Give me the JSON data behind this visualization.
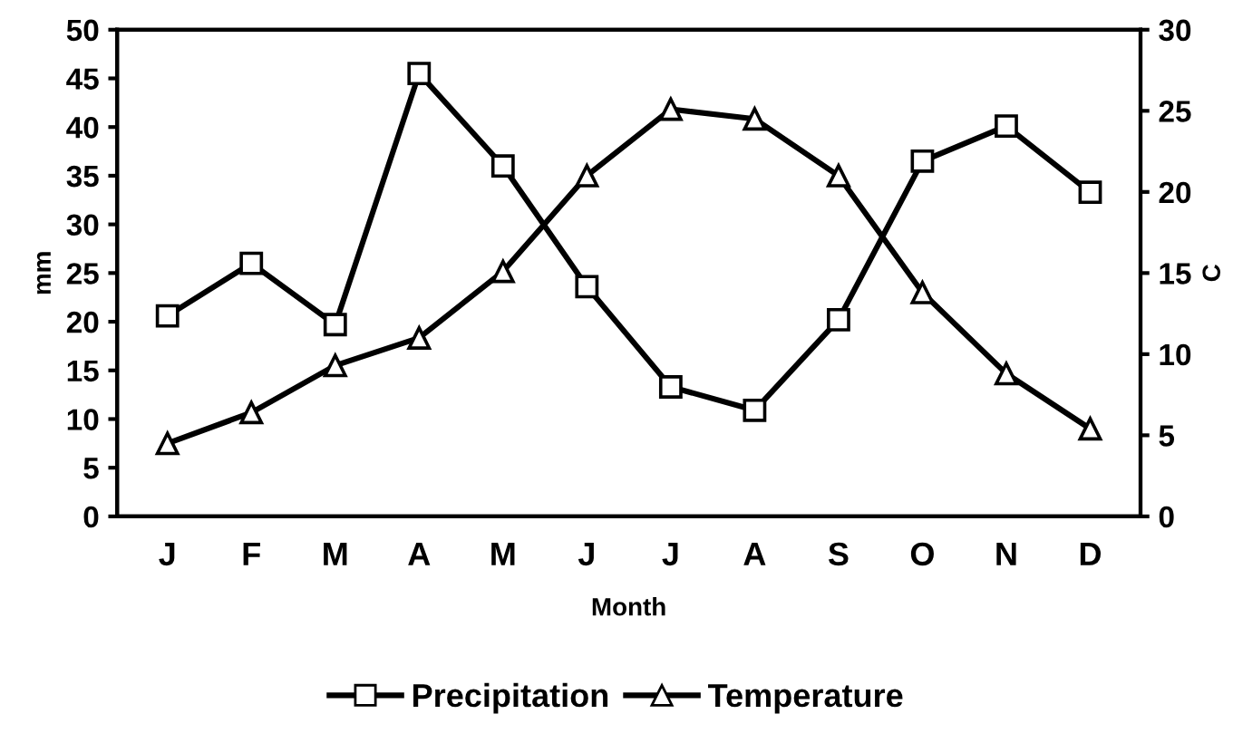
{
  "chart_data": {
    "type": "line",
    "xlabel": "Month",
    "ylabel": "mm",
    "y2label": "C",
    "categories": [
      "J",
      "F",
      "M",
      "A",
      "M",
      "J",
      "J",
      "A",
      "S",
      "O",
      "N",
      "D"
    ],
    "series": [
      {
        "name": "Precipitation",
        "color": "#000000",
        "marker": "square",
        "values": [
          20.6,
          26.0,
          19.7,
          45.5,
          36.0,
          23.6,
          13.3,
          10.9,
          20.2,
          36.5,
          40.1,
          33.3
        ]
      },
      {
        "name": "Temperature",
        "color": "#000000",
        "marker": "triangle",
        "axis": "y2",
        "values": [
          4.5,
          6.4,
          9.3,
          11.0,
          15.1,
          21.0,
          25.1,
          24.5,
          21.0,
          13.8,
          8.8,
          5.4
        ]
      }
    ],
    "ylim": [
      0,
      50
    ],
    "yticks": [
      0,
      5,
      10,
      15,
      20,
      25,
      30,
      35,
      40,
      45,
      50
    ],
    "y2lim": [
      0,
      30
    ],
    "y2ticks": [
      0,
      5,
      10,
      15,
      20,
      25,
      30
    ],
    "legend": "bottom",
    "grid": false,
    "line_style": "solid"
  }
}
